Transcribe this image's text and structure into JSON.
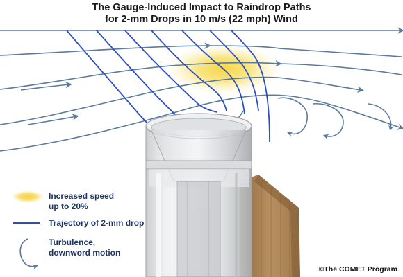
{
  "title": {
    "line1": "The Gauge-Induced Impact to Raindrop Paths",
    "line2": "for 2-mm Drops in 10 m/s (22 mph) Wind"
  },
  "legend": [
    {
      "icon": "yellow-glow-ellipse",
      "label_line1": "Increased speed",
      "label_line2": "up to 20%"
    },
    {
      "icon": "blue-line",
      "label_line1": "Trajectory of 2-mm drop",
      "label_line2": ""
    },
    {
      "icon": "curved-arrow",
      "label_line1": "Turbulence,",
      "label_line2": "downword motion"
    }
  ],
  "copyright": "©The COMET Program",
  "colors": {
    "wind_arrow": "#5a7a9e",
    "trajectory": "#2c4fbf",
    "speed_zone": "#f6dc5a",
    "legend_text": "#1f3566",
    "fence": "#a0784c"
  }
}
